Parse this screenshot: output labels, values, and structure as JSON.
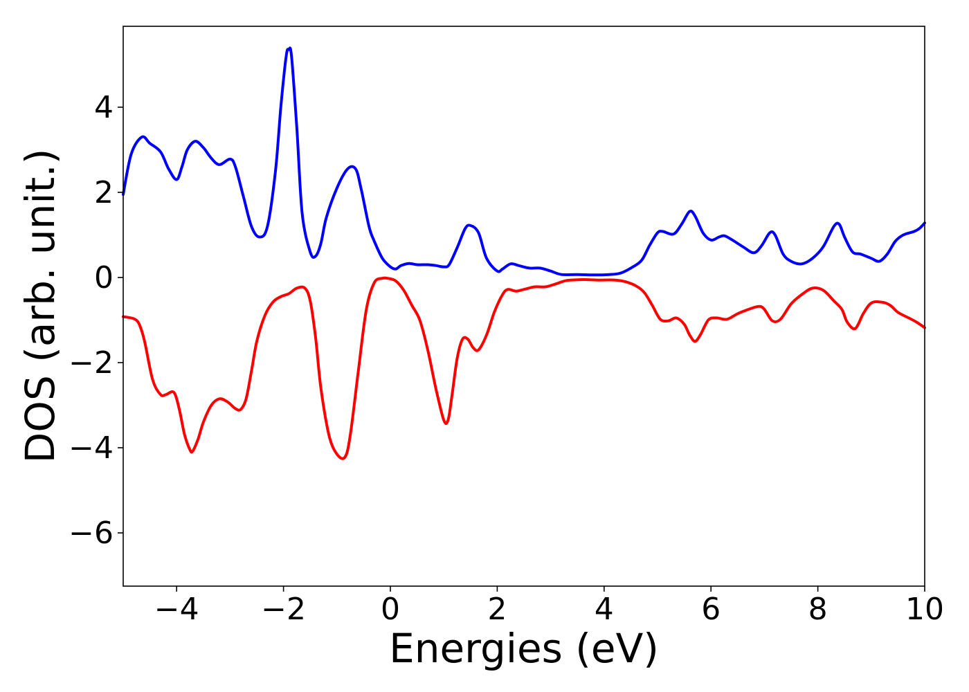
{
  "chart_data": {
    "type": "line",
    "title": "",
    "xlabel": "Energies (eV)",
    "ylabel": "DOS (arb. unit.)",
    "xlim": [
      -5,
      10
    ],
    "ylim": [
      -7.25,
      5.9
    ],
    "xticks": [
      -4,
      -2,
      0,
      2,
      4,
      6,
      8,
      10
    ],
    "yticks": [
      -6,
      -4,
      -2,
      0,
      2,
      4
    ],
    "grid": false,
    "legend": "none",
    "series": [
      {
        "color": "#0000ff",
        "x": [
          -5.0,
          -4.85,
          -4.65,
          -4.5,
          -4.3,
          -4.15,
          -4.0,
          -3.9,
          -3.8,
          -3.65,
          -3.5,
          -3.35,
          -3.2,
          -3.0,
          -2.9,
          -2.75,
          -2.6,
          -2.45,
          -2.3,
          -2.15,
          -2.05,
          -1.95,
          -1.9,
          -1.85,
          -1.75,
          -1.65,
          -1.5,
          -1.4,
          -1.3,
          -1.2,
          -1.0,
          -0.8,
          -0.65,
          -0.55,
          -0.4,
          -0.3,
          -0.15,
          0.0,
          0.1,
          0.2,
          0.35,
          0.5,
          0.7,
          0.85,
          1.0,
          1.1,
          1.25,
          1.4,
          1.5,
          1.65,
          1.8,
          2.0,
          2.1,
          2.25,
          2.4,
          2.6,
          2.8,
          3.0,
          3.2,
          3.5,
          3.8,
          4.1,
          4.3,
          4.5,
          4.7,
          4.85,
          5.0,
          5.1,
          5.3,
          5.45,
          5.6,
          5.7,
          5.85,
          6.0,
          6.15,
          6.25,
          6.4,
          6.6,
          6.8,
          6.95,
          7.1,
          7.2,
          7.35,
          7.5,
          7.7,
          7.9,
          8.1,
          8.3,
          8.4,
          8.5,
          8.65,
          8.8,
          9.0,
          9.15,
          9.3,
          9.45,
          9.6,
          9.8,
          9.9,
          10.0
        ],
        "values": [
          1.95,
          2.9,
          3.3,
          3.15,
          2.95,
          2.55,
          2.3,
          2.6,
          3.0,
          3.2,
          3.05,
          2.8,
          2.65,
          2.78,
          2.6,
          1.9,
          1.2,
          0.95,
          1.2,
          2.5,
          4.0,
          5.2,
          5.35,
          5.2,
          3.5,
          1.5,
          0.6,
          0.5,
          0.8,
          1.4,
          2.1,
          2.55,
          2.55,
          2.1,
          1.2,
          0.85,
          0.45,
          0.25,
          0.2,
          0.28,
          0.33,
          0.3,
          0.3,
          0.28,
          0.25,
          0.3,
          0.7,
          1.15,
          1.22,
          1.05,
          0.45,
          0.15,
          0.2,
          0.32,
          0.28,
          0.22,
          0.22,
          0.15,
          0.07,
          0.07,
          0.06,
          0.07,
          0.1,
          0.22,
          0.4,
          0.75,
          1.05,
          1.08,
          1.02,
          1.25,
          1.55,
          1.45,
          1.05,
          0.88,
          0.95,
          0.98,
          0.88,
          0.72,
          0.58,
          0.75,
          1.05,
          1.0,
          0.55,
          0.38,
          0.32,
          0.45,
          0.72,
          1.2,
          1.25,
          0.95,
          0.6,
          0.55,
          0.45,
          0.38,
          0.55,
          0.85,
          1.0,
          1.08,
          1.15,
          1.28
        ]
      },
      {
        "color": "#ff0000",
        "x": [
          -5.0,
          -4.8,
          -4.7,
          -4.6,
          -4.45,
          -4.3,
          -4.2,
          -4.05,
          -3.95,
          -3.85,
          -3.75,
          -3.7,
          -3.6,
          -3.5,
          -3.35,
          -3.2,
          -3.05,
          -2.9,
          -2.8,
          -2.7,
          -2.6,
          -2.5,
          -2.35,
          -2.2,
          -2.05,
          -1.9,
          -1.75,
          -1.6,
          -1.5,
          -1.4,
          -1.3,
          -1.15,
          -1.0,
          -0.85,
          -0.75,
          -0.6,
          -0.45,
          -0.3,
          -0.15,
          -0.05,
          0.1,
          0.25,
          0.4,
          0.55,
          0.7,
          0.85,
          1.0,
          1.08,
          1.15,
          1.25,
          1.35,
          1.45,
          1.55,
          1.65,
          1.8,
          1.95,
          2.1,
          2.2,
          2.35,
          2.5,
          2.7,
          2.9,
          3.1,
          3.3,
          3.6,
          3.9,
          4.2,
          4.4,
          4.6,
          4.75,
          4.9,
          5.05,
          5.2,
          5.35,
          5.5,
          5.6,
          5.7,
          5.8,
          5.95,
          6.1,
          6.3,
          6.5,
          6.7,
          6.9,
          7.0,
          7.15,
          7.3,
          7.5,
          7.7,
          7.9,
          8.1,
          8.3,
          8.45,
          8.55,
          8.7,
          8.85,
          9.0,
          9.2,
          9.35,
          9.5,
          9.7,
          9.85,
          10.0
        ],
        "values": [
          -0.92,
          -0.97,
          -1.1,
          -1.5,
          -2.4,
          -2.75,
          -2.75,
          -2.7,
          -3.1,
          -3.7,
          -4.05,
          -4.08,
          -3.8,
          -3.4,
          -3.0,
          -2.85,
          -2.92,
          -3.08,
          -3.1,
          -2.85,
          -2.2,
          -1.5,
          -0.9,
          -0.58,
          -0.45,
          -0.38,
          -0.25,
          -0.25,
          -0.55,
          -1.4,
          -2.6,
          -3.7,
          -4.15,
          -4.22,
          -3.7,
          -2.2,
          -0.75,
          -0.12,
          -0.02,
          -0.02,
          -0.08,
          -0.3,
          -0.65,
          -1.0,
          -1.7,
          -2.6,
          -3.35,
          -3.35,
          -2.8,
          -1.9,
          -1.45,
          -1.45,
          -1.65,
          -1.7,
          -1.35,
          -0.8,
          -0.4,
          -0.28,
          -0.32,
          -0.28,
          -0.22,
          -0.22,
          -0.15,
          -0.07,
          -0.05,
          -0.06,
          -0.06,
          -0.1,
          -0.2,
          -0.35,
          -0.65,
          -0.98,
          -1.02,
          -0.95,
          -1.1,
          -1.35,
          -1.5,
          -1.35,
          -1.0,
          -0.95,
          -0.98,
          -0.85,
          -0.75,
          -0.68,
          -0.75,
          -1.02,
          -0.98,
          -0.62,
          -0.4,
          -0.25,
          -0.3,
          -0.55,
          -0.75,
          -1.05,
          -1.2,
          -0.85,
          -0.6,
          -0.58,
          -0.65,
          -0.82,
          -0.95,
          -1.05,
          -1.18
        ]
      }
    ]
  }
}
